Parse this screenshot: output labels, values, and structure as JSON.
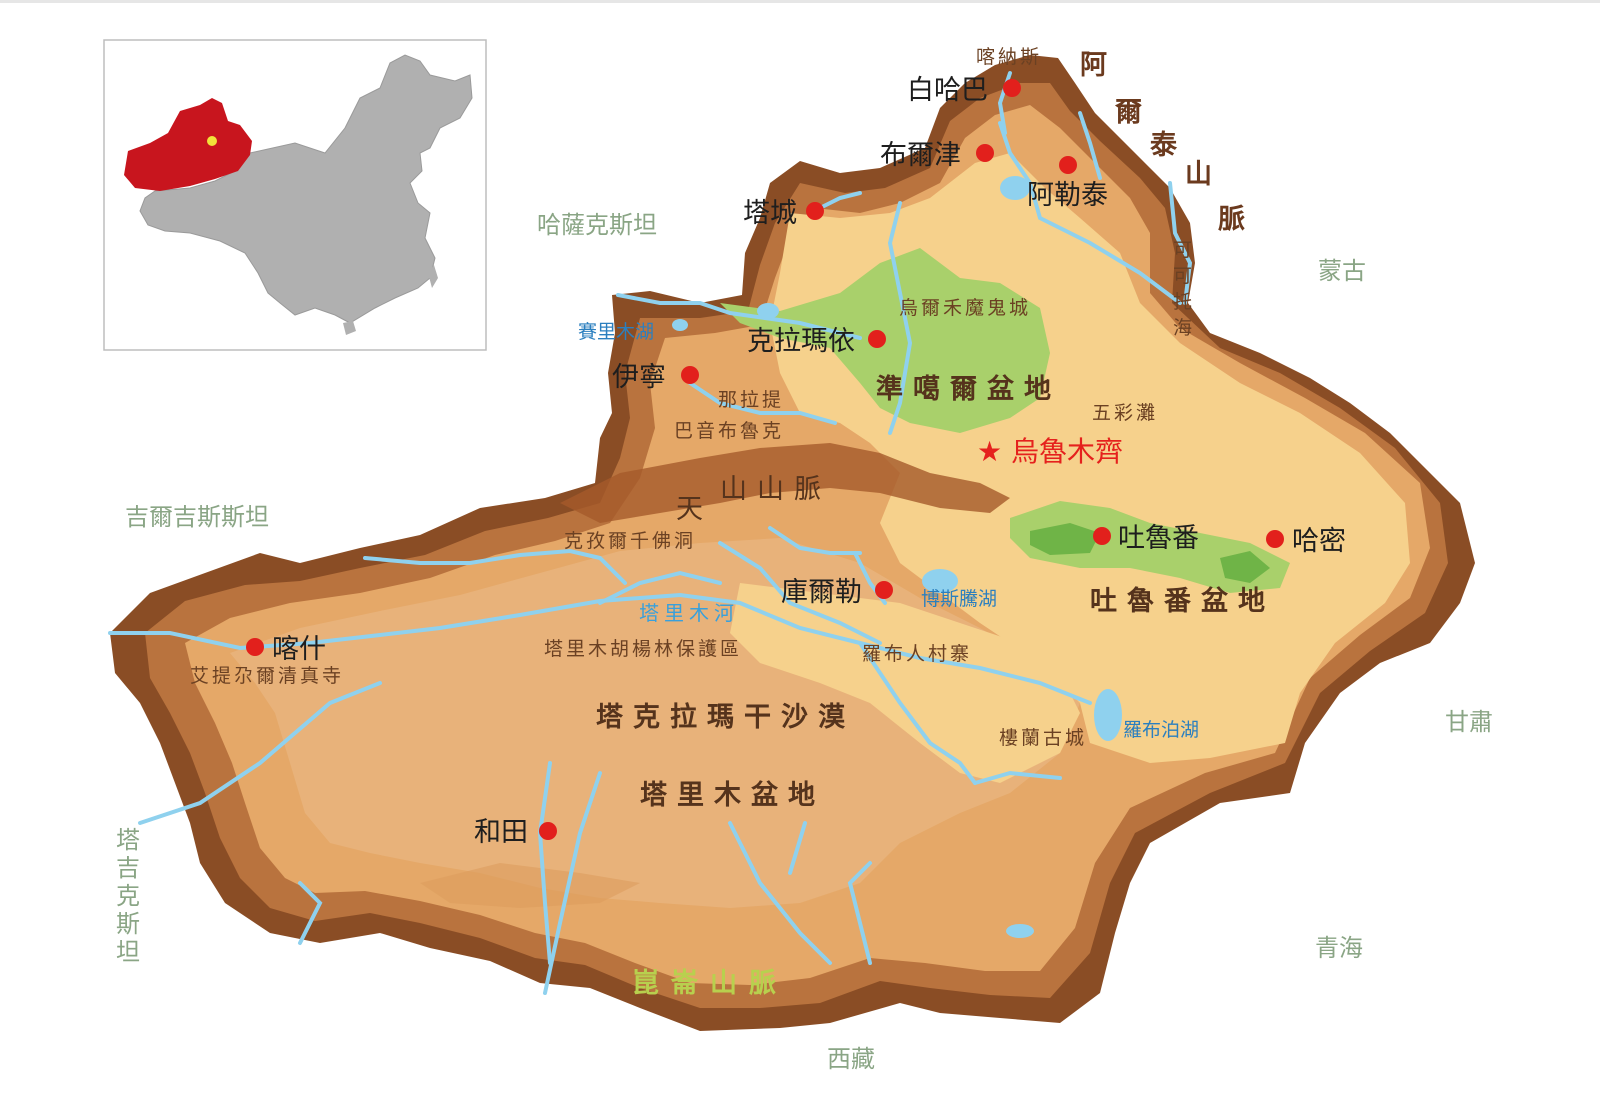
{
  "map": {
    "neighbors": {
      "kazakhstan": "哈薩克斯坦",
      "kyrgyzstan": "吉爾吉斯斯坦",
      "tajikistan": "塔吉克斯坦",
      "mongolia": "蒙古",
      "gansu": "甘肅",
      "qinghai": "青海",
      "tibet": "西藏"
    },
    "cities": {
      "baihaba": "白哈巴",
      "burqin": "布爾津",
      "altay": "阿勒泰",
      "tacheng": "塔城",
      "karamay": "克拉瑪依",
      "yining": "伊寧",
      "turpan": "吐魯番",
      "hami": "哈密",
      "korla": "庫爾勒",
      "kashgar": "喀什",
      "hotan": "和田"
    },
    "capital": "★ 烏魯木齊",
    "basins": {
      "junggar": "準噶爾盆地",
      "turpan": "吐魯番盆地",
      "tarim": "塔里木盆地",
      "taklamakan": "塔克拉瑪干沙漠"
    },
    "mountains": {
      "tianshan_1": "天",
      "tianshan_2": "山山脈",
      "kunlun": "崑崙山脈",
      "altai": [
        "阿",
        "爾",
        "泰",
        "山",
        "脈"
      ]
    },
    "pois": {
      "kanas": "喀納斯",
      "ghost_city": "烏爾禾魔鬼城",
      "wucaitan": "五彩灘",
      "nalati": "那拉提",
      "bayanbulak": "巴音布魯克",
      "kizil": "克孜爾千佛洞",
      "populus": "塔里木胡楊林保護區",
      "id_kah": "艾提尕爾清真寺",
      "lop_village": "羅布人村寨",
      "loulan": "樓蘭古城"
    },
    "water": {
      "sayram": "賽里木湖",
      "bosten": "博斯騰湖",
      "lop_nur": "羅布泊湖",
      "tarim_river": "塔里木河",
      "koktokay": [
        "可",
        "可",
        "托",
        "海"
      ]
    },
    "colors": {
      "region_highlight": "#c8151e",
      "china_gray": "#b0b0b0",
      "city_dot": "#e2201c",
      "capital_text": "#e5211d",
      "neighbor_text": "#8aa585",
      "river": "#8fd1ee",
      "lowland": "#f6d18c",
      "oasis": "#a9d06b"
    }
  }
}
